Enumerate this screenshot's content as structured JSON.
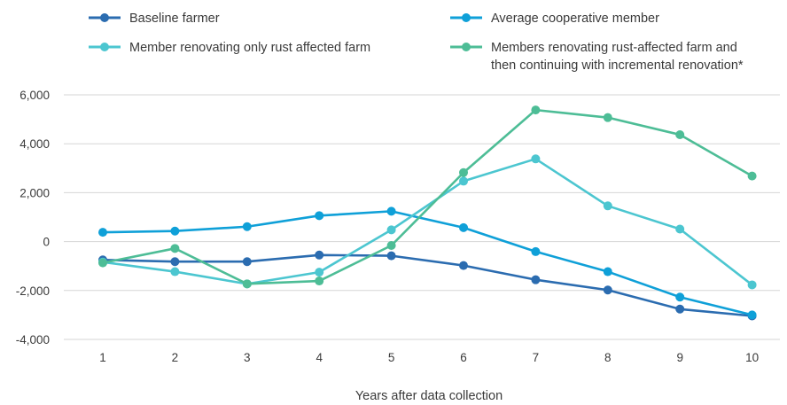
{
  "chart_data": {
    "type": "line",
    "title": "",
    "xlabel": "Years after data collection",
    "ylabel": "",
    "categories": [
      "1",
      "2",
      "3",
      "4",
      "5",
      "6",
      "7",
      "8",
      "9",
      "10"
    ],
    "ylim": [
      -4000,
      6000
    ],
    "yticks": [
      -4000,
      -2000,
      0,
      2000,
      4000,
      6000
    ],
    "ytick_labels": [
      "-4,000",
      "-2,000",
      "0",
      "2,000",
      "4,000",
      "6,000"
    ],
    "grid": "horizontal",
    "legend_position": "top",
    "series": [
      {
        "name": "Baseline farmer",
        "color": "#2b6cb0",
        "values": [
          -750,
          -820,
          -820,
          -550,
          -580,
          -980,
          -1560,
          -1980,
          -2760,
          -3040
        ]
      },
      {
        "name": "Average cooperative member",
        "color": "#0fa0d8",
        "values": [
          380,
          430,
          610,
          1060,
          1240,
          570,
          -410,
          -1230,
          -2270,
          -3000
        ]
      },
      {
        "name": "Member renovating only rust affected farm",
        "color": "#4cc6d0",
        "values": [
          -840,
          -1230,
          -1730,
          -1250,
          480,
          2470,
          3380,
          1460,
          510,
          -1770
        ]
      },
      {
        "name": "Members renovating rust-affected farm and then continuing with incremental renovation*",
        "legend_lines": [
          "Members renovating rust-affected farm and",
          "then continuing with incremental renovation*"
        ],
        "color": "#4dbd96",
        "values": [
          -870,
          -280,
          -1730,
          -1610,
          -160,
          2820,
          5380,
          5070,
          4370,
          2680
        ]
      }
    ]
  }
}
